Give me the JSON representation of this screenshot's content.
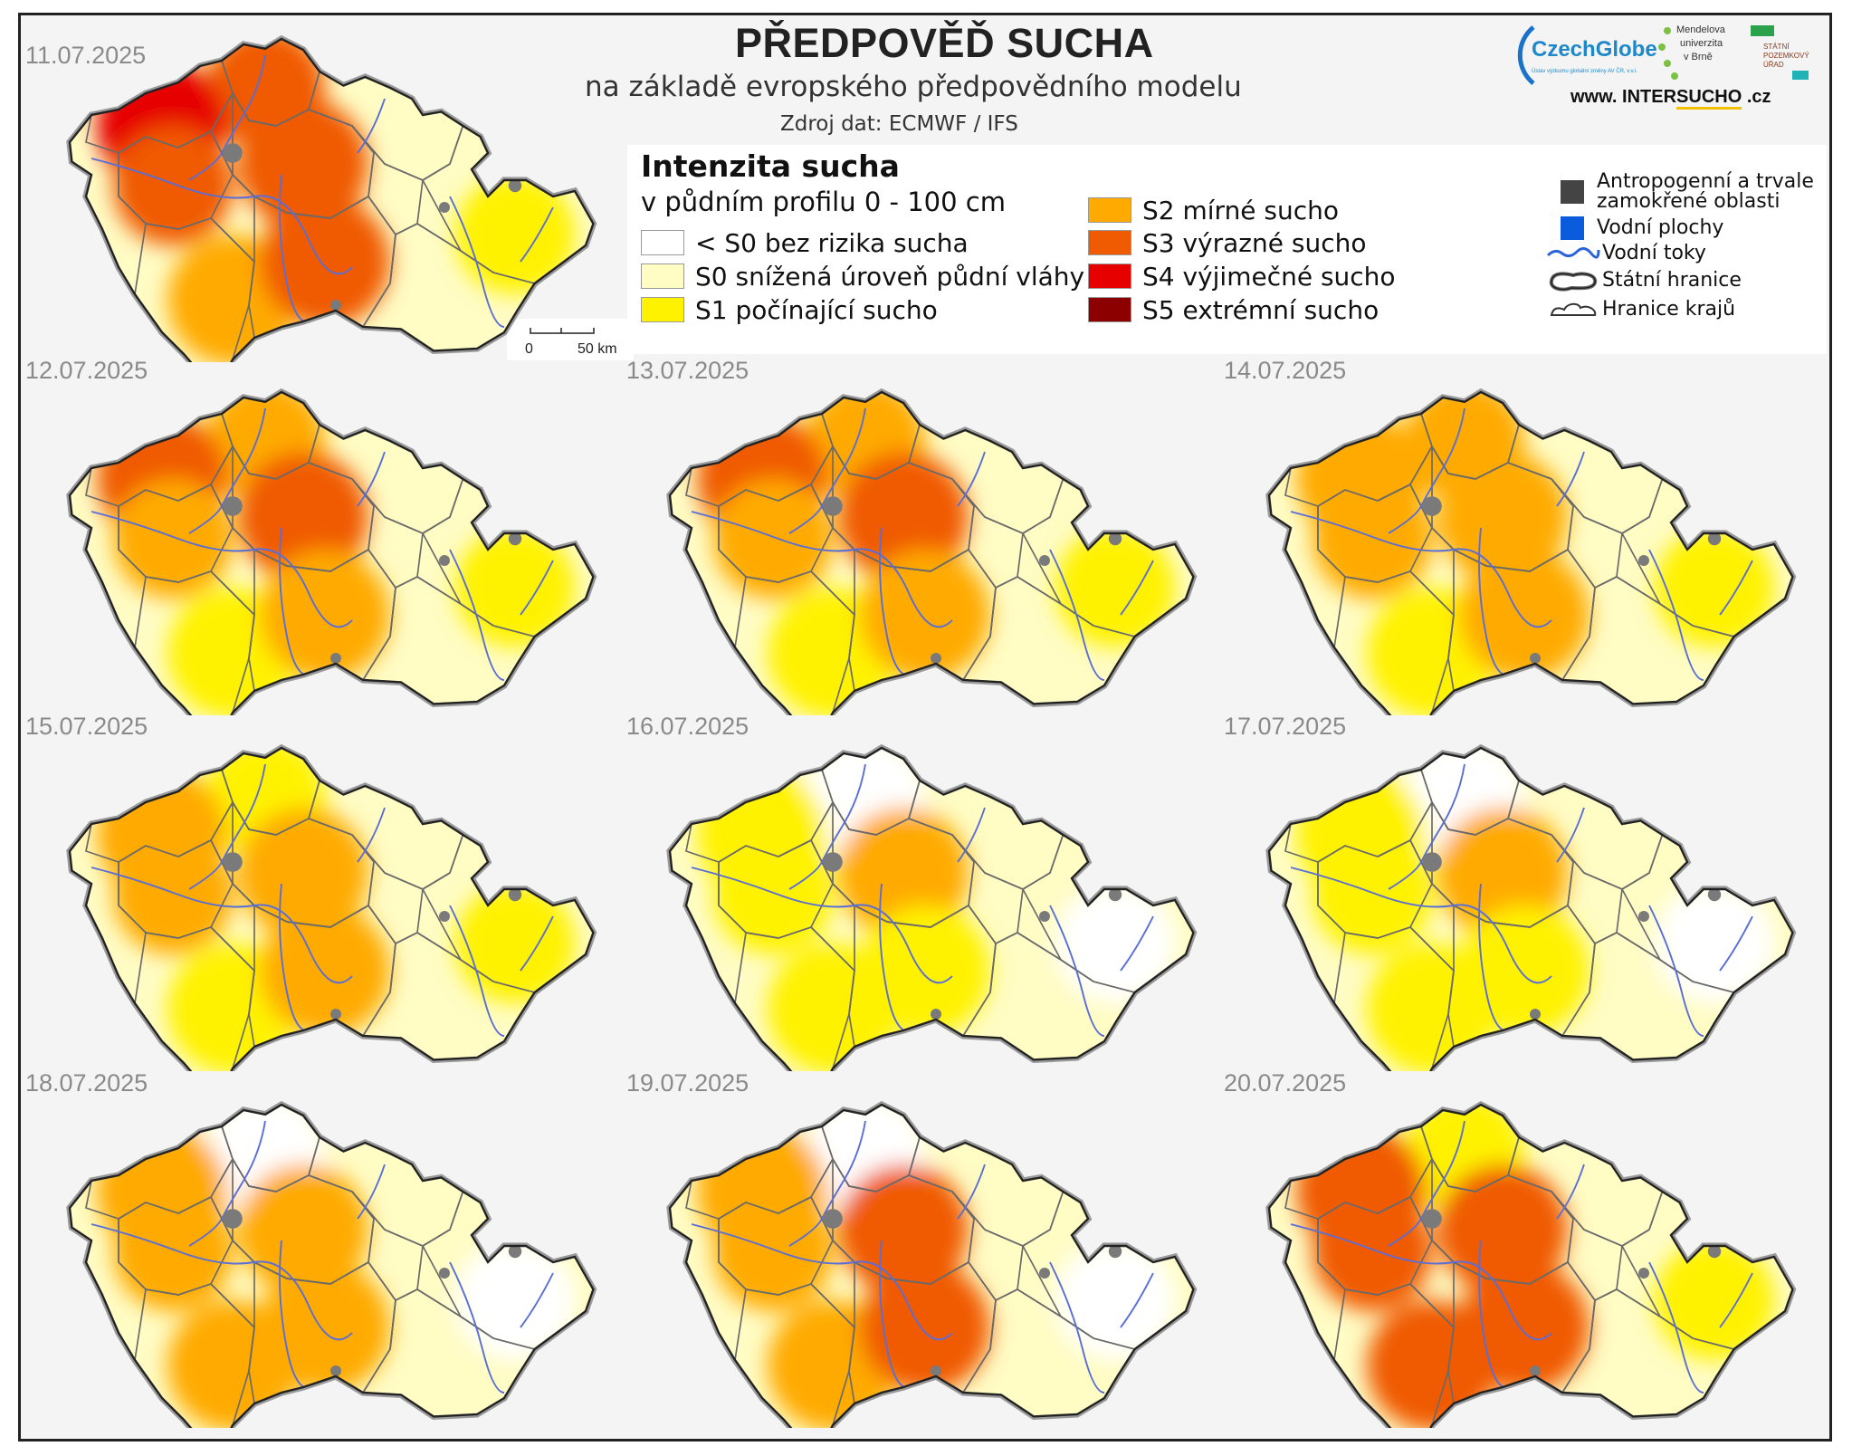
{
  "header": {
    "title": "PŘEDPOVĚĎ SUCHA",
    "subtitle": "na základě evropského předpovědního modelu",
    "source": "Zdroj dat: ECMWF / IFS"
  },
  "logos": {
    "czechglobe": "CzechGlobe",
    "czechglobe_tagline": "Ústav výzkumu globální změny AV ČR, v.v.i.",
    "mendelu": [
      "Mendelova",
      "univerzita",
      "v Brně"
    ],
    "spu": [
      "STÁTNÍ",
      "POZEMKOVÝ",
      "ÚŘAD"
    ],
    "site_prefix": "www. INTER",
    "site_accent": "SUCHO",
    "site_suffix": " .cz"
  },
  "legend": {
    "title": "Intenzita sucha",
    "subtitle": "v půdním profilu 0 - 100 cm",
    "classes": [
      {
        "label": "< S0 bez rizika sucha",
        "color": "#ffffff"
      },
      {
        "label": "S0 snížená úroveň půdní vláhy",
        "color": "#fffcc4"
      },
      {
        "label": "S1 počínající sucho",
        "color": "#fff200"
      },
      {
        "label": "S2 mírné sucho",
        "color": "#ffaa00"
      },
      {
        "label": "S3 výrazné sucho",
        "color": "#f05a00"
      },
      {
        "label": "S4 výjimečné sucho",
        "color": "#e60000"
      },
      {
        "label": "S5 extrémní sucho",
        "color": "#8c0000"
      }
    ],
    "other": [
      {
        "label": "Antropogenní a trvale zamokřené oblasti",
        "lines": [
          "Antropogenní a trvale",
          "zamokřené oblasti"
        ],
        "color": "#444444",
        "icon": "gray-square-icon"
      },
      {
        "label": "Vodní plochy",
        "color": "#0a5cdc",
        "icon": "blue-square-icon"
      },
      {
        "label": "Vodní toky",
        "color": "#2c63d8",
        "icon": "wavy-line-icon"
      },
      {
        "label": "Státní hranice",
        "color": "#555555",
        "icon": "state-border-icon"
      },
      {
        "label": "Hranice krajů",
        "color": "#333333",
        "icon": "region-border-icon"
      }
    ]
  },
  "scale": {
    "label_start": "0",
    "label_end": "50 km"
  },
  "maps": [
    {
      "date": "11.07.2025",
      "levels": [
        3,
        4,
        3,
        3,
        2,
        3,
        1
      ]
    },
    {
      "date": "12.07.2025",
      "levels": [
        2,
        3,
        2,
        3,
        1,
        2,
        1
      ]
    },
    {
      "date": "13.07.2025",
      "levels": [
        2,
        3,
        2,
        3,
        1,
        2,
        1
      ]
    },
    {
      "date": "14.07.2025",
      "levels": [
        2,
        2,
        2,
        2,
        1,
        2,
        1
      ]
    },
    {
      "date": "15.07.2025",
      "levels": [
        1,
        2,
        2,
        2,
        1,
        2,
        1
      ]
    },
    {
      "date": "16.07.2025",
      "levels": [
        0,
        1,
        1,
        2,
        1,
        1,
        0
      ]
    },
    {
      "date": "17.07.2025",
      "levels": [
        0,
        1,
        1,
        2,
        1,
        1,
        0
      ]
    },
    {
      "date": "18.07.2025",
      "levels": [
        0,
        2,
        2,
        2,
        2,
        2,
        0
      ]
    },
    {
      "date": "19.07.2025",
      "levels": [
        0,
        2,
        2,
        3,
        2,
        3,
        0
      ]
    },
    {
      "date": "20.07.2025",
      "levels": [
        1,
        3,
        3,
        3,
        3,
        3,
        1
      ]
    }
  ]
}
